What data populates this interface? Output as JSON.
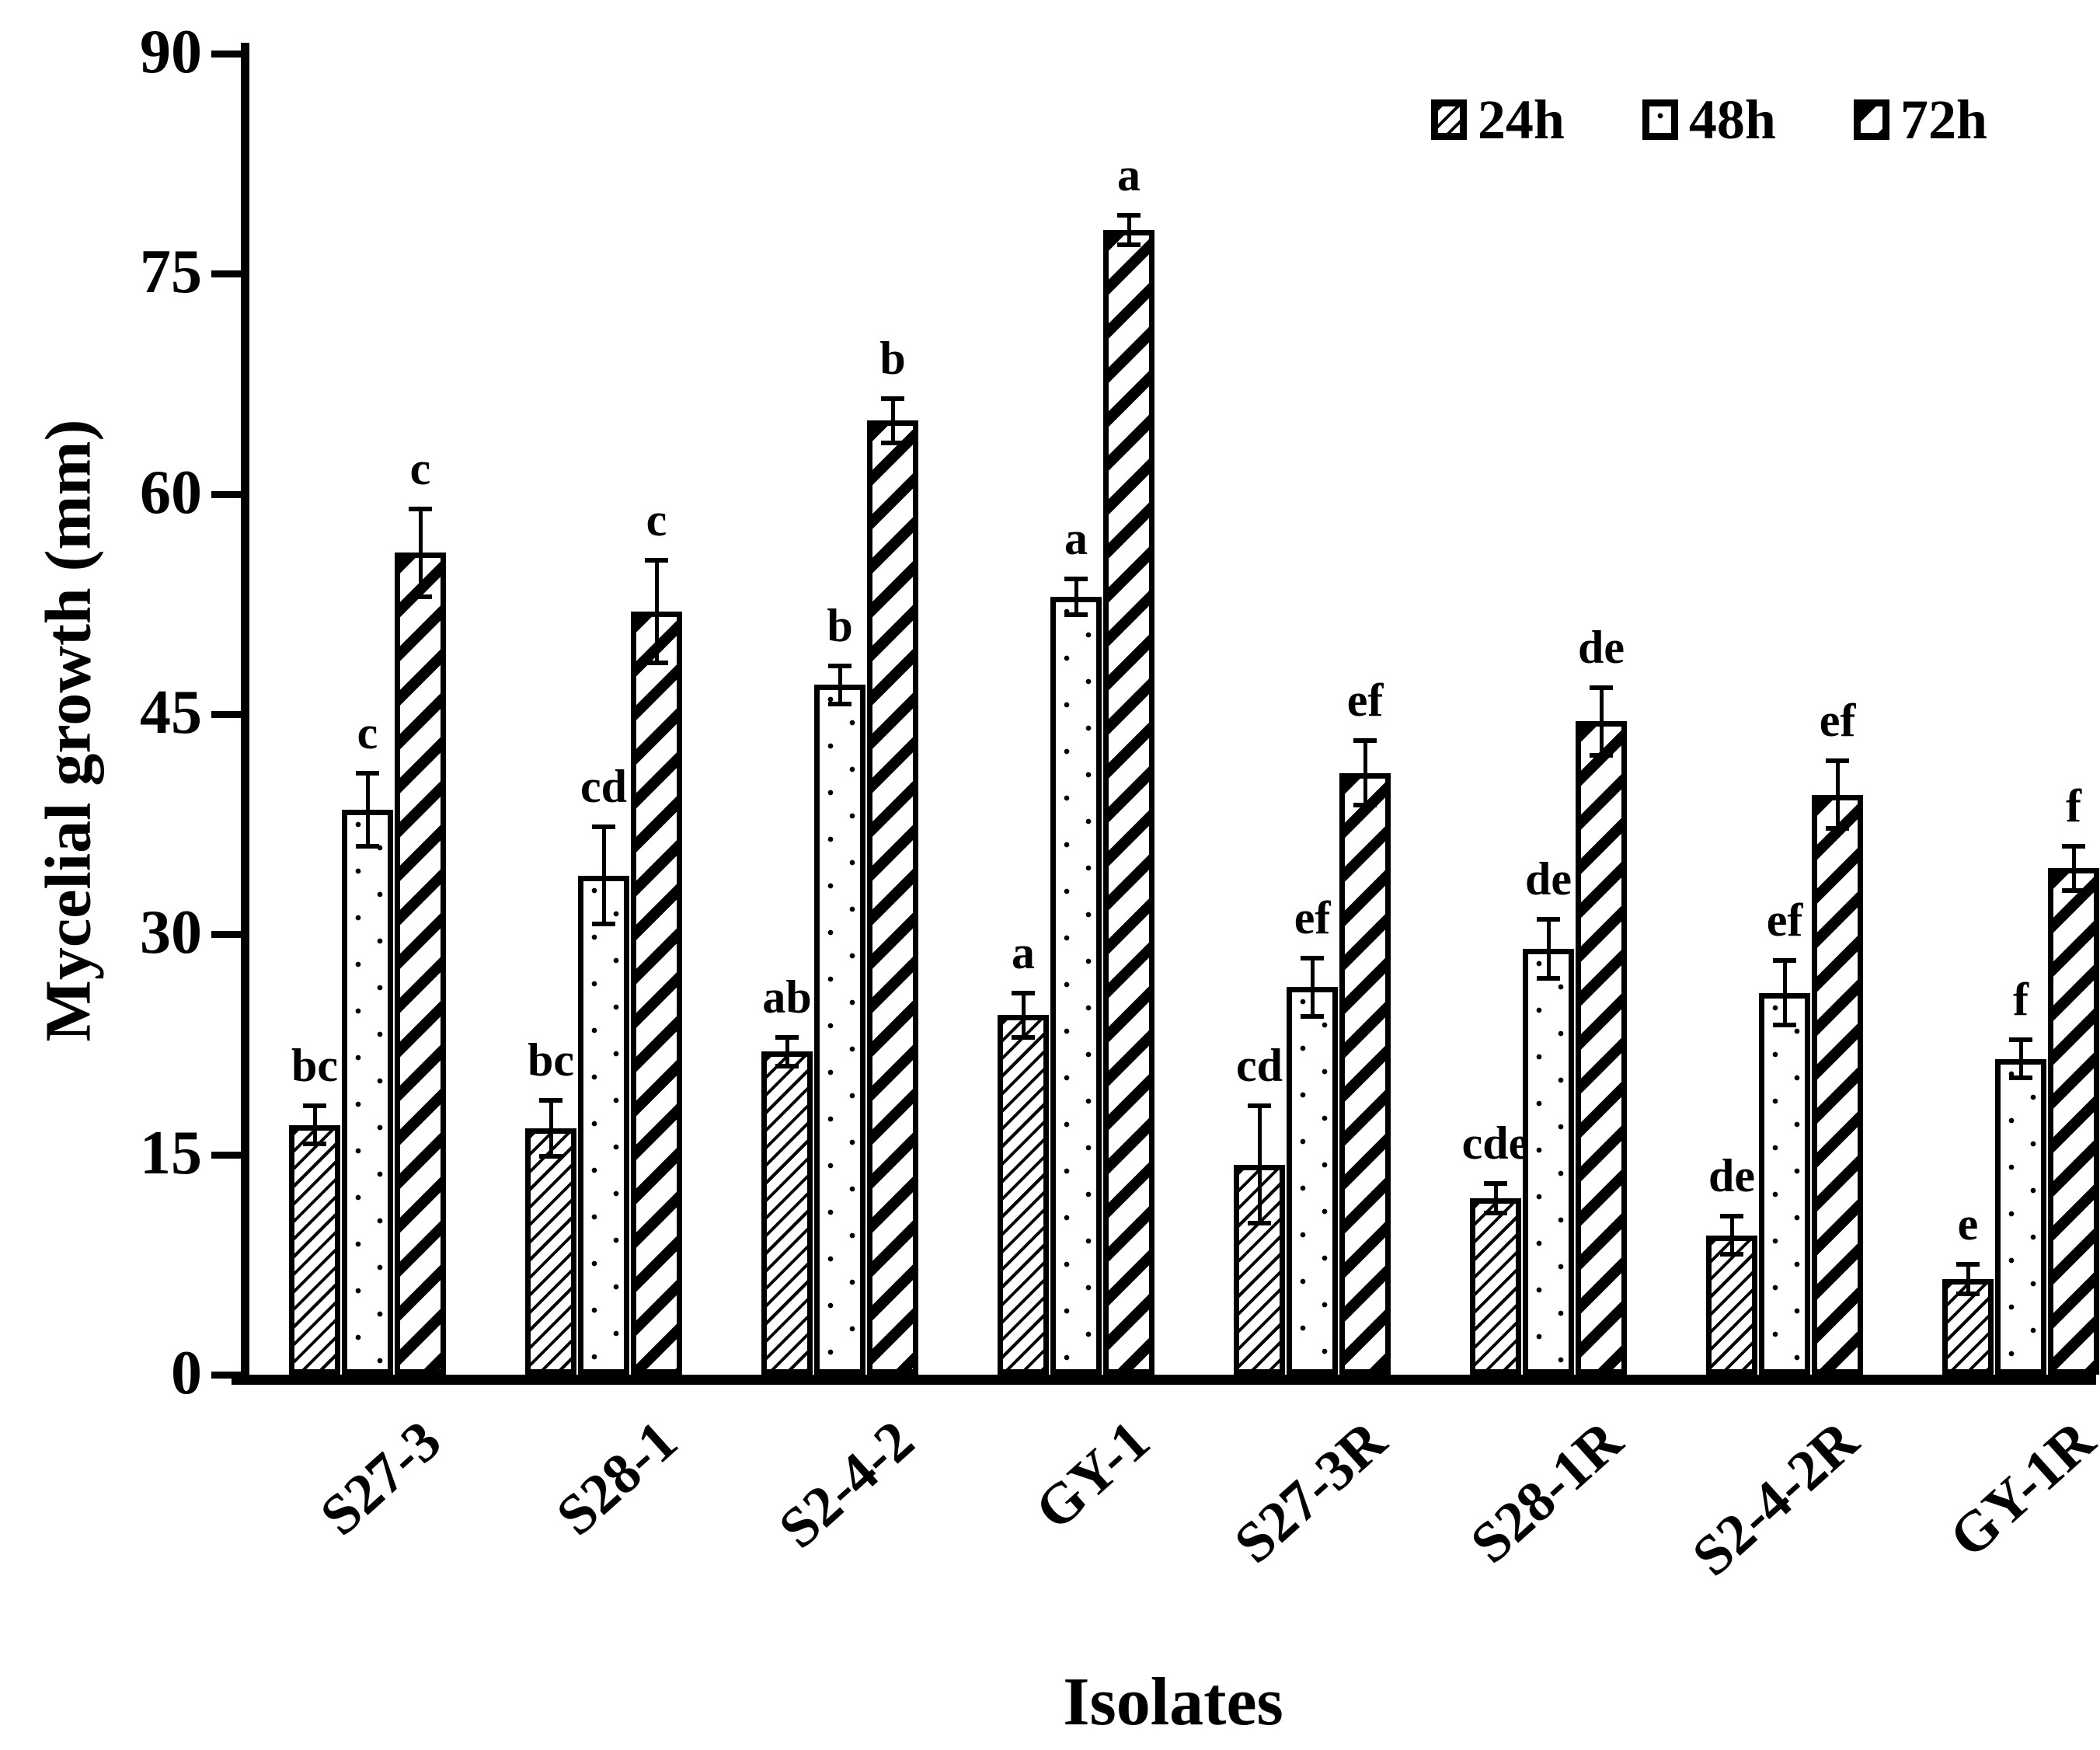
{
  "figure": {
    "background": "#ffffff",
    "ink": "#000000"
  },
  "y_axis": {
    "title": "Mycelial growth (mm)",
    "min": 0,
    "max": 90,
    "tick_step": 15,
    "tick_labels": [
      "0",
      "15",
      "30",
      "45",
      "60",
      "75",
      "90"
    ]
  },
  "x_axis": {
    "title": "Isolates"
  },
  "legend": [
    {
      "name": "24h",
      "pattern": "diagonal-hatch-fine"
    },
    {
      "name": "48h",
      "pattern": "dotted"
    },
    {
      "name": "72h",
      "pattern": "diagonal-stripes-bold"
    }
  ],
  "chart_data": {
    "type": "bar",
    "title": "",
    "xlabel": "Isolates",
    "ylabel": "Mycelial growth (mm)",
    "ylim": [
      0,
      90
    ],
    "grid": false,
    "legend_position": "top-right",
    "categories": [
      "S27-3",
      "S28-1",
      "S2-4-2",
      "GY-1",
      "S27-3R",
      "S28-1R",
      "S2-4-2R",
      "GY-1R"
    ],
    "series": [
      {
        "name": "24h",
        "pattern": "diagonal-hatch-fine",
        "values": [
          17,
          16.8,
          22,
          24.5,
          14.3,
          12,
          9.5,
          6.5
        ],
        "errors": [
          1.3,
          1.9,
          1.0,
          1.5,
          4.0,
          1.0,
          1.3,
          1.0
        ],
        "sig_letters": [
          "bc",
          "bc",
          "ab",
          "a",
          "cd",
          "cde",
          "de",
          "e"
        ]
      },
      {
        "name": "48h",
        "pattern": "dotted",
        "values": [
          38.5,
          34,
          47,
          53,
          26.4,
          29,
          26,
          21.5
        ],
        "errors": [
          2.5,
          3.3,
          1.3,
          1.2,
          2.0,
          2.0,
          2.2,
          1.3
        ],
        "sig_letters": [
          "c",
          "cd",
          "b",
          "a",
          "ef",
          "de",
          "ef",
          "f"
        ]
      },
      {
        "name": "72h",
        "pattern": "diagonal-stripes-bold",
        "values": [
          56,
          52,
          65,
          78,
          41,
          44.5,
          39.5,
          34.5
        ],
        "errors": [
          3.0,
          3.5,
          1.5,
          1.0,
          2.2,
          2.3,
          2.3,
          1.5
        ],
        "sig_letters": [
          "c",
          "c",
          "b",
          "a",
          "ef",
          "de",
          "ef",
          "f"
        ]
      }
    ]
  }
}
